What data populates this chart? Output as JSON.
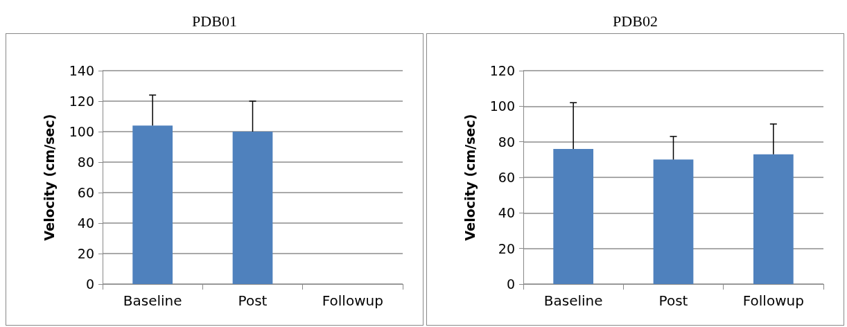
{
  "chart_data": [
    {
      "type": "bar",
      "title": "PDB01",
      "ylabel": "Velocity (cm/sec)",
      "categories": [
        "Baseline",
        "Post",
        "Followup"
      ],
      "series": [
        {
          "color": "#4f81bd",
          "values": [
            104,
            100,
            null
          ],
          "errors": [
            [
              104,
              124
            ],
            [
              100,
              120
            ],
            null
          ]
        }
      ],
      "ylim": [
        0,
        140
      ],
      "yticks": [
        0,
        20,
        40,
        60,
        80,
        100,
        120,
        140
      ],
      "grid": "y"
    },
    {
      "type": "bar",
      "title": "PDB02",
      "ylabel": "Velocity (cm/sec)",
      "categories": [
        "Baseline",
        "Post",
        "Followup"
      ],
      "series": [
        {
          "color": "#4f81bd",
          "values": [
            76,
            70,
            73
          ],
          "errors": [
            [
              76,
              102
            ],
            [
              70,
              83
            ],
            [
              73,
              90
            ]
          ]
        }
      ],
      "ylim": [
        0,
        120
      ],
      "yticks": [
        0,
        20,
        40,
        60,
        80,
        100,
        120
      ],
      "grid": "y"
    }
  ]
}
